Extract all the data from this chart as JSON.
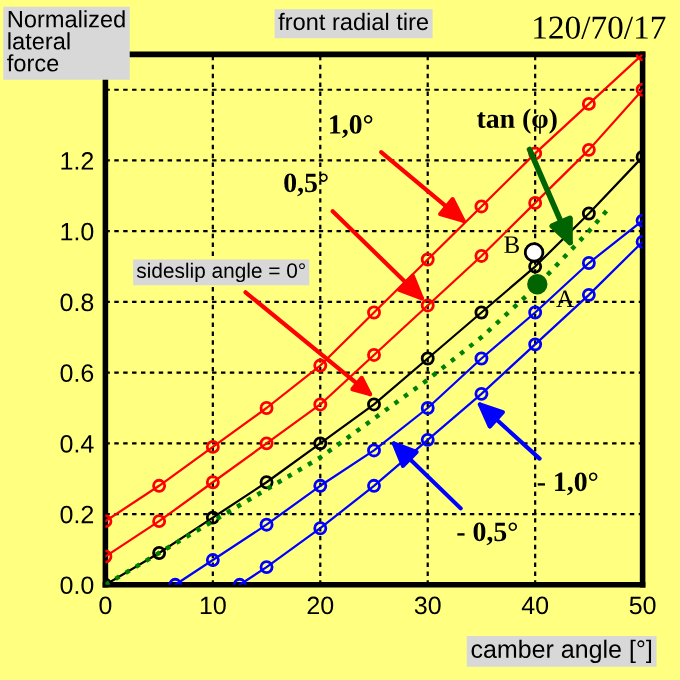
{
  "chart_data": {
    "type": "line",
    "title": "front radial tire",
    "subtitle": "120/70/17",
    "ylabel": "Normalized lateral force",
    "xlabel": "camber angle [°]",
    "xlim": [
      0,
      50
    ],
    "ylim": [
      0,
      1.5
    ],
    "xticks": [
      0,
      10,
      20,
      30,
      40,
      50
    ],
    "yticks": [
      {
        "value": 0,
        "label": "0.0"
      },
      {
        "value": 0.2,
        "label": "0.2"
      },
      {
        "value": 0.4,
        "label": "0.4"
      },
      {
        "value": 0.6,
        "label": "0.6"
      },
      {
        "value": 0.8,
        "label": "0.8"
      },
      {
        "value": 1.0,
        "label": "1.0"
      },
      {
        "value": 1.2,
        "label": "1.2"
      },
      {
        "value": 1.4,
        "label": null
      }
    ],
    "grid": true,
    "legend": false,
    "series": [
      {
        "color": "#ff0000",
        "marker": "circle",
        "line_style": "solid",
        "x": [
          0,
          5,
          10,
          15,
          20,
          25,
          30,
          35,
          40,
          45,
          50
        ],
        "values": [
          0.18,
          0.28,
          0.39,
          0.5,
          0.62,
          0.77,
          0.92,
          1.07,
          1.22,
          1.36,
          1.5
        ]
      },
      {
        "color": "#ff0000",
        "marker": "circle",
        "line_style": "solid",
        "x": [
          0,
          5,
          10,
          15,
          20,
          25,
          30,
          35,
          40,
          45,
          50
        ],
        "values": [
          0.08,
          0.18,
          0.29,
          0.4,
          0.51,
          0.65,
          0.79,
          0.93,
          1.08,
          1.23,
          1.4
        ]
      },
      {
        "color": "#000000",
        "marker": "circle",
        "line_style": "solid",
        "x": [
          0,
          5,
          10,
          15,
          20,
          25,
          30,
          35,
          40,
          45,
          50
        ],
        "values": [
          0,
          0.09,
          0.19,
          0.29,
          0.4,
          0.51,
          0.64,
          0.77,
          0.9,
          1.05,
          1.21
        ]
      },
      {
        "color": "#008000",
        "marker": "none",
        "line_style": "dotted",
        "x": [
          0,
          5,
          10,
          15,
          20,
          25,
          30,
          35,
          40,
          45,
          47
        ],
        "values": [
          0,
          0.09,
          0.18,
          0.27,
          0.36,
          0.47,
          0.58,
          0.7,
          0.84,
          1.0,
          1.07
        ]
      },
      {
        "color": "#0000ff",
        "marker": "circle",
        "line_style": "solid",
        "x": [
          6.5,
          10,
          15,
          20,
          25,
          30,
          35,
          40,
          45,
          50
        ],
        "values": [
          0,
          0.07,
          0.17,
          0.28,
          0.38,
          0.5,
          0.64,
          0.77,
          0.91,
          1.03
        ]
      },
      {
        "color": "#0000ff",
        "marker": "circle",
        "line_style": "solid",
        "x": [
          12.5,
          15,
          20,
          25,
          30,
          35,
          40,
          45,
          50
        ],
        "values": [
          0,
          0.05,
          0.16,
          0.28,
          0.41,
          0.54,
          0.68,
          0.82,
          0.97
        ]
      },
      {
        "type": "scatter",
        "color": "#ffffff",
        "x": [
          39.9
        ],
        "values": [
          0.94
        ]
      },
      {
        "type": "scatter",
        "color": "#006400",
        "x": [
          40.2
        ],
        "values": [
          0.85
        ]
      }
    ],
    "annotations": [
      {
        "text": "1,0°",
        "x": 33.7,
        "y": 1.02
      },
      {
        "text": "0,5°",
        "x": 29.8,
        "y": 0.8
      },
      {
        "text": "sideslip angle = 0°",
        "x": 25,
        "y": 0.53
      },
      {
        "text": "tan (φ)",
        "x": 43.5,
        "y": 0.95
      },
      {
        "text": "- 1,0°",
        "x": 34.5,
        "y": 0.52
      },
      {
        "text": "- 0,5°",
        "x": 26.5,
        "y": 0.41
      },
      {
        "text": "B",
        "x": 39.9,
        "y": 0.94
      },
      {
        "text": "A",
        "x": 40.2,
        "y": 0.85
      }
    ]
  }
}
